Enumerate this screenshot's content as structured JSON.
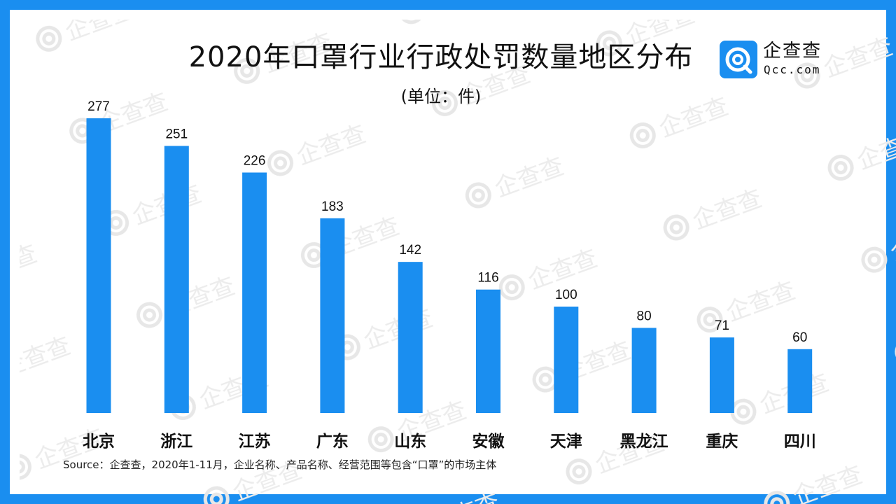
{
  "chart_data": {
    "type": "bar",
    "title": "2020年口罩行业行政处罚数量地区分布",
    "subtitle": "(单位：件)",
    "categories": [
      "北京",
      "浙江",
      "江苏",
      "广东",
      "山东",
      "安徽",
      "天津",
      "黑龙江",
      "重庆",
      "四川"
    ],
    "values": [
      277,
      251,
      226,
      183,
      142,
      116,
      100,
      80,
      71,
      60
    ],
    "ylim": [
      0,
      300
    ],
    "grid": false,
    "bar_color": "#1a8ef0",
    "data_labels": true
  },
  "brand": {
    "name": "企查查",
    "domain": "Qcc.com",
    "icon": "qcc-logo-icon",
    "color": "#1a8ef0"
  },
  "watermark_text": "企查查",
  "source": "Source：企查查，2020年1-11月，企业名称、产品名称、经营范围等包含“口罩”的市场主体",
  "frame_color": "#1a8ef0"
}
